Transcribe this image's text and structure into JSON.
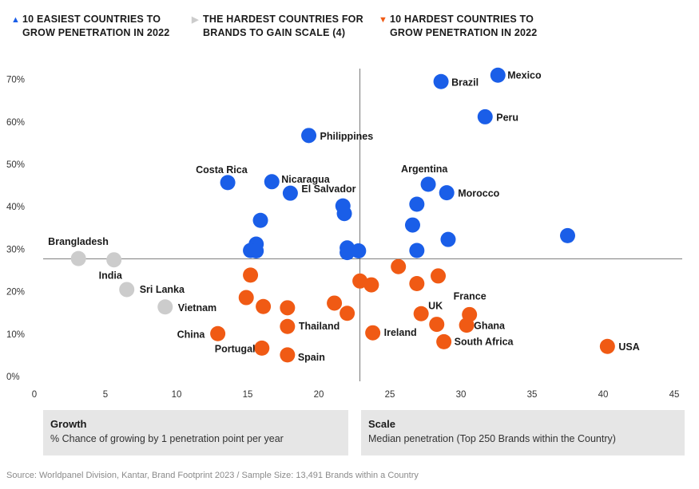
{
  "legend": [
    {
      "marker": "▲",
      "color": "#1a5ee8",
      "line1": "10 EASIEST COUNTRIES TO",
      "line2": "GROW PENETRATION IN 2022"
    },
    {
      "marker": "▶",
      "color": "#cccccc",
      "line1": "THE HARDEST COUNTRIES FOR",
      "line2": "BRANDS TO GAIN SCALE (4)"
    },
    {
      "marker": "▼",
      "color": "#f05a14",
      "line1": "10 HARDEST COUNTRIES TO",
      "line2": "GROW PENETRATION IN 2022"
    }
  ],
  "colors": {
    "blue": "#1a5ee8",
    "grey": "#cccccc",
    "orange": "#f05a14"
  },
  "boxes": {
    "growth": {
      "title": "Growth",
      "subtitle": "% Chance of growing by 1 penetration point per year"
    },
    "scale": {
      "title": "Scale",
      "subtitle": "Median penetration (Top 250 Brands within the Country)"
    }
  },
  "source": "Source: Worldpanel Division, Kantar, Brand Footprint 2023 / Sample Size: 13,491 Brands within a Country",
  "chart_data": {
    "type": "scatter",
    "xlim": [
      0,
      45
    ],
    "ylim": [
      0,
      70
    ],
    "x_ticks": [
      0,
      5,
      10,
      15,
      20,
      25,
      30,
      35,
      40,
      45
    ],
    "y_ticks": [
      0,
      10,
      20,
      30,
      40,
      50,
      60,
      70
    ],
    "y_tick_labels": [
      "0%",
      "10%",
      "20%",
      "30%",
      "40%",
      "50%",
      "60%",
      "70%"
    ],
    "reference_lines": {
      "x": 22.9,
      "y": 27.7
    },
    "grid": false,
    "series": [
      {
        "group": "blue",
        "points": [
          {
            "x": 32.6,
            "y": 71.0,
            "label": "Mexico"
          },
          {
            "x": 28.6,
            "y": 69.5,
            "label": "Brazil"
          },
          {
            "x": 31.7,
            "y": 61.2,
            "label": "Peru"
          },
          {
            "x": 19.3,
            "y": 56.8,
            "label": "Philippines"
          },
          {
            "x": 13.6,
            "y": 45.7,
            "label": "Costa Rica"
          },
          {
            "x": 16.7,
            "y": 45.9,
            "label": "Nicaragua"
          },
          {
            "x": 18.0,
            "y": 43.2,
            "label": "El Salvador"
          },
          {
            "x": 27.7,
            "y": 45.3,
            "label": "Argentina"
          },
          {
            "x": 29.0,
            "y": 43.3,
            "label": "Morocco"
          },
          {
            "x": 15.9,
            "y": 36.8,
            "label": ""
          },
          {
            "x": 21.7,
            "y": 40.2,
            "label": ""
          },
          {
            "x": 21.8,
            "y": 38.4,
            "label": ""
          },
          {
            "x": 26.9,
            "y": 40.6,
            "label": ""
          },
          {
            "x": 26.6,
            "y": 35.7,
            "label": ""
          },
          {
            "x": 37.5,
            "y": 33.2,
            "label": ""
          },
          {
            "x": 29.1,
            "y": 32.3,
            "label": ""
          },
          {
            "x": 15.6,
            "y": 31.2,
            "label": ""
          },
          {
            "x": 15.2,
            "y": 29.7,
            "label": ""
          },
          {
            "x": 15.6,
            "y": 29.6,
            "label": ""
          },
          {
            "x": 22.0,
            "y": 30.3,
            "label": ""
          },
          {
            "x": 22.0,
            "y": 29.2,
            "label": ""
          },
          {
            "x": 22.8,
            "y": 29.6,
            "label": ""
          },
          {
            "x": 26.9,
            "y": 29.7,
            "label": ""
          }
        ]
      },
      {
        "group": "grey",
        "points": [
          {
            "x": 3.1,
            "y": 27.8,
            "label": "Brangladesh"
          },
          {
            "x": 5.6,
            "y": 27.5,
            "label": "India"
          },
          {
            "x": 6.5,
            "y": 20.5,
            "label": "Sri Lanka"
          },
          {
            "x": 9.2,
            "y": 16.4,
            "label": "Vietnam"
          }
        ]
      },
      {
        "group": "orange",
        "points": [
          {
            "x": 12.9,
            "y": 10.1,
            "label": "China"
          },
          {
            "x": 16.0,
            "y": 6.7,
            "label": "Portugal"
          },
          {
            "x": 17.8,
            "y": 5.1,
            "label": "Spain"
          },
          {
            "x": 17.8,
            "y": 11.8,
            "label": "Thailand"
          },
          {
            "x": 23.8,
            "y": 10.3,
            "label": "Ireland"
          },
          {
            "x": 27.2,
            "y": 14.8,
            "label": "UK"
          },
          {
            "x": 30.6,
            "y": 14.6,
            "label": "France"
          },
          {
            "x": 30.4,
            "y": 12.1,
            "label": "Ghana"
          },
          {
            "x": 28.8,
            "y": 8.2,
            "label": "South Africa"
          },
          {
            "x": 40.3,
            "y": 7.1,
            "label": "USA"
          },
          {
            "x": 15.2,
            "y": 23.9,
            "label": ""
          },
          {
            "x": 14.9,
            "y": 18.6,
            "label": ""
          },
          {
            "x": 16.1,
            "y": 16.5,
            "label": ""
          },
          {
            "x": 17.8,
            "y": 16.2,
            "label": ""
          },
          {
            "x": 21.1,
            "y": 17.3,
            "label": ""
          },
          {
            "x": 22.0,
            "y": 14.9,
            "label": ""
          },
          {
            "x": 22.9,
            "y": 22.5,
            "label": ""
          },
          {
            "x": 23.7,
            "y": 21.6,
            "label": ""
          },
          {
            "x": 25.6,
            "y": 25.9,
            "label": ""
          },
          {
            "x": 26.9,
            "y": 21.9,
            "label": ""
          },
          {
            "x": 28.4,
            "y": 23.7,
            "label": ""
          },
          {
            "x": 28.3,
            "y": 12.3,
            "label": ""
          }
        ]
      }
    ]
  }
}
